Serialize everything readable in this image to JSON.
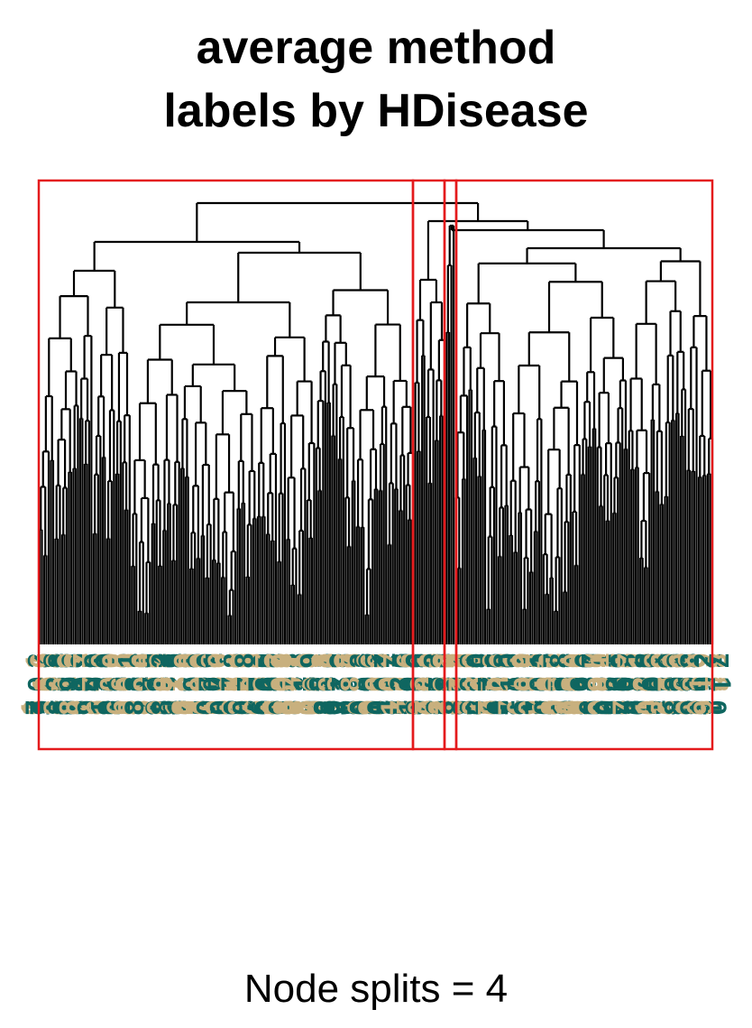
{
  "title": {
    "line1": "average method",
    "line2": "labels by HDisease"
  },
  "xlabel": "Node splits = 4",
  "colors": {
    "tree": "#000000",
    "cluster_box": "#e41a1c",
    "label_tan": "#c8b07e",
    "label_teal": "#0f6660"
  },
  "dendrogram": {
    "method": "average",
    "label_variable": "HDisease",
    "clusters": 4,
    "leaf_label_colors": [
      "label_tan",
      "label_teal"
    ]
  }
}
